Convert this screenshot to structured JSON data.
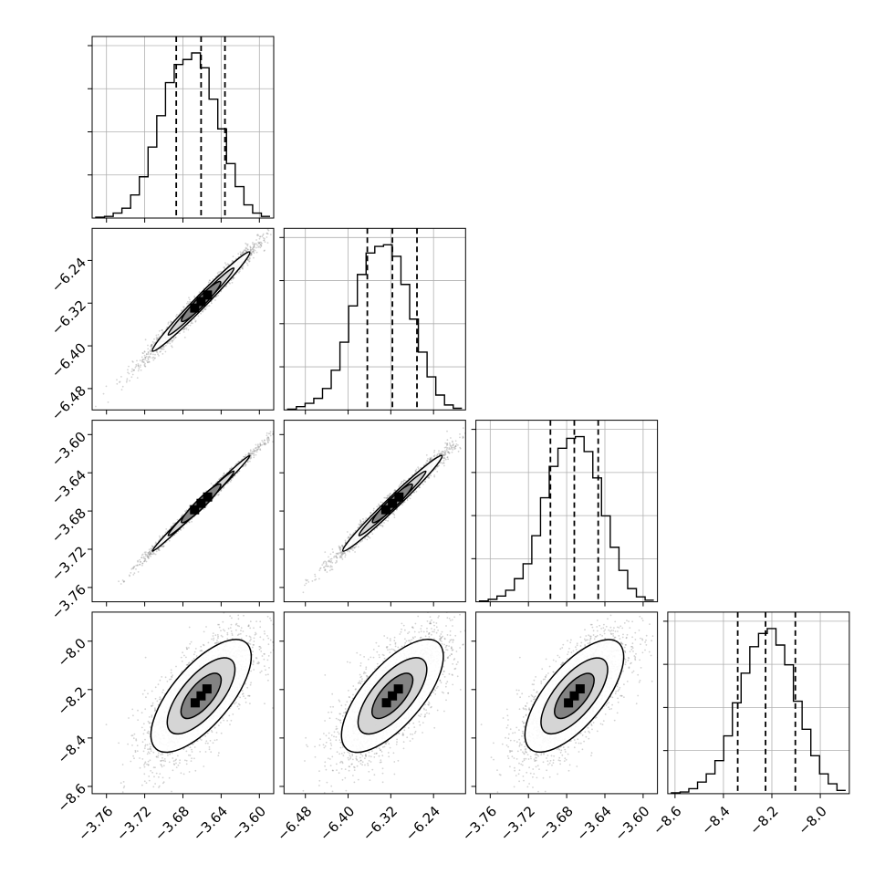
{
  "chart_data": {
    "type": "corner",
    "params": [
      {
        "range": [
          -3.775,
          -3.585
        ],
        "ticks": [
          -3.76,
          -3.72,
          -3.68,
          -3.64,
          -3.6
        ],
        "tick_labels": [
          "−3.76",
          "−3.72",
          "−3.68",
          "−3.64",
          "−3.60"
        ],
        "quantiles": [
          -3.687,
          -3.661,
          -3.636
        ]
      },
      {
        "range": [
          -6.52,
          -6.18
        ],
        "ticks": [
          -6.48,
          -6.4,
          -6.32,
          -6.24
        ],
        "tick_labels": [
          "−6.48",
          "−6.40",
          "−6.32",
          "−6.24"
        ],
        "quantiles": [
          -6.364,
          -6.317,
          -6.271
        ]
      },
      {
        "range": [
          -3.775,
          -3.585
        ],
        "ticks": [
          -3.76,
          -3.72,
          -3.68,
          -3.64,
          -3.6
        ],
        "tick_labels": [
          "−3.76",
          "−3.72",
          "−3.68",
          "−3.64",
          "−3.60"
        ],
        "quantiles": [
          -3.697,
          -3.672,
          -3.647
        ]
      },
      {
        "range": [
          -8.63,
          -7.88
        ],
        "ticks": [
          -8.6,
          -8.4,
          -8.2,
          -8.0
        ],
        "tick_labels": [
          "−8.6",
          "−8.4",
          "−8.2",
          "−8.0"
        ],
        "quantiles": [
          -8.341,
          -8.226,
          -8.103
        ]
      }
    ],
    "histograms": [
      [
        0.005,
        0.01,
        0.03,
        0.06,
        0.14,
        0.25,
        0.43,
        0.62,
        0.82,
        0.93,
        0.96,
        1.0,
        0.91,
        0.72,
        0.54,
        0.33,
        0.19,
        0.08,
        0.03,
        0.01
      ],
      [
        0.005,
        0.02,
        0.04,
        0.07,
        0.13,
        0.24,
        0.41,
        0.63,
        0.82,
        0.95,
        0.99,
        1.0,
        0.93,
        0.76,
        0.55,
        0.35,
        0.2,
        0.09,
        0.03,
        0.01
      ],
      [
        0.005,
        0.015,
        0.035,
        0.07,
        0.14,
        0.23,
        0.4,
        0.63,
        0.82,
        0.93,
        0.99,
        1.0,
        0.91,
        0.75,
        0.52,
        0.33,
        0.19,
        0.08,
        0.03,
        0.01
      ],
      [
        0.005,
        0.01,
        0.03,
        0.07,
        0.12,
        0.2,
        0.35,
        0.55,
        0.73,
        0.89,
        0.97,
        1.0,
        0.9,
        0.78,
        0.56,
        0.39,
        0.23,
        0.12,
        0.06,
        0.02
      ]
    ],
    "joint": {
      "1_0": {
        "corr": 0.985
      },
      "2_0": {
        "corr": 0.995
      },
      "2_1": {
        "corr": 0.985
      },
      "3_0": {
        "corr": 0.7
      },
      "3_1": {
        "corr": 0.7
      },
      "3_2": {
        "corr": 0.7
      }
    },
    "colors": {
      "hist": "#000000",
      "points": "#808080",
      "grid": "#b0b0b0"
    }
  }
}
